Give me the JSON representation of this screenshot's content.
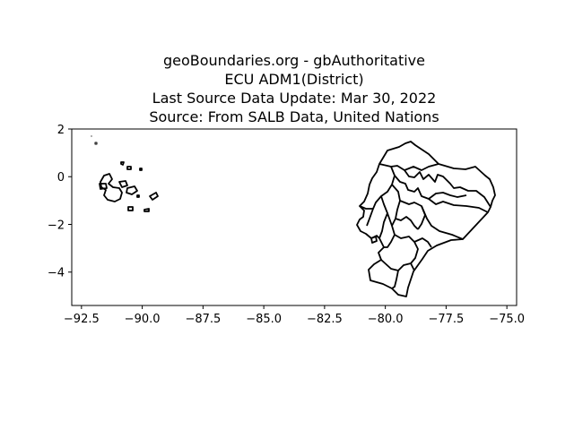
{
  "title": {
    "line1": "geoBoundaries.org - gbAuthoritative",
    "line2": "ECU ADM1(District)",
    "line3": "Last Source Data Update: Mar 30, 2022",
    "line4": "Source: From SALB Data, United Nations"
  },
  "chart_data": {
    "type": "map",
    "xlim": [
      -92.9,
      -74.6
    ],
    "ylim": [
      -5.4,
      2.0
    ],
    "x_ticks": [
      -92.5,
      -90.0,
      -87.5,
      -85.0,
      -82.5,
      -80.0,
      -77.5,
      -75.0
    ],
    "x_tick_labels": [
      "−92.5",
      "−90.0",
      "−87.5",
      "−85.0",
      "−82.5",
      "−80.0",
      "−77.5",
      "−75.0"
    ],
    "y_ticks": [
      2,
      0,
      -2,
      -4
    ],
    "y_tick_labels": [
      "2",
      "0",
      "−2",
      "−4"
    ],
    "grid": false,
    "stroke_color": "#000000"
  }
}
